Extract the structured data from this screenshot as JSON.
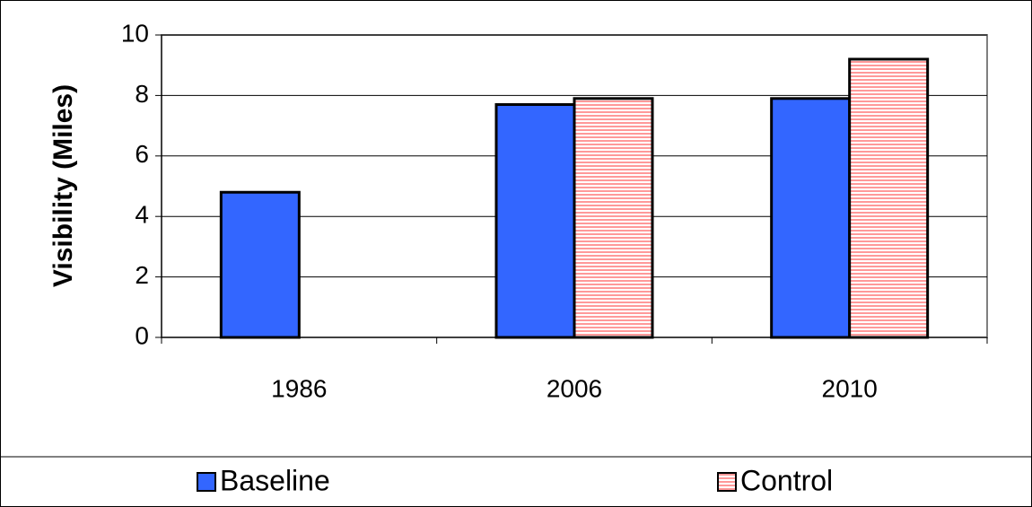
{
  "chart_data": {
    "type": "bar",
    "y_label": "Visibility (Miles)",
    "categories": [
      "1986",
      "2006",
      "2010"
    ],
    "series": [
      {
        "name": "Baseline",
        "color": "#3366ff",
        "values": [
          4.8,
          7.7,
          7.9
        ]
      },
      {
        "name": "Control",
        "color": "#ff9999",
        "values": [
          null,
          7.9,
          9.2
        ]
      }
    ],
    "ylim": [
      0,
      10
    ],
    "yticks": [
      0,
      2,
      4,
      6,
      8,
      10
    ],
    "grid": true,
    "legend": "bottom"
  }
}
